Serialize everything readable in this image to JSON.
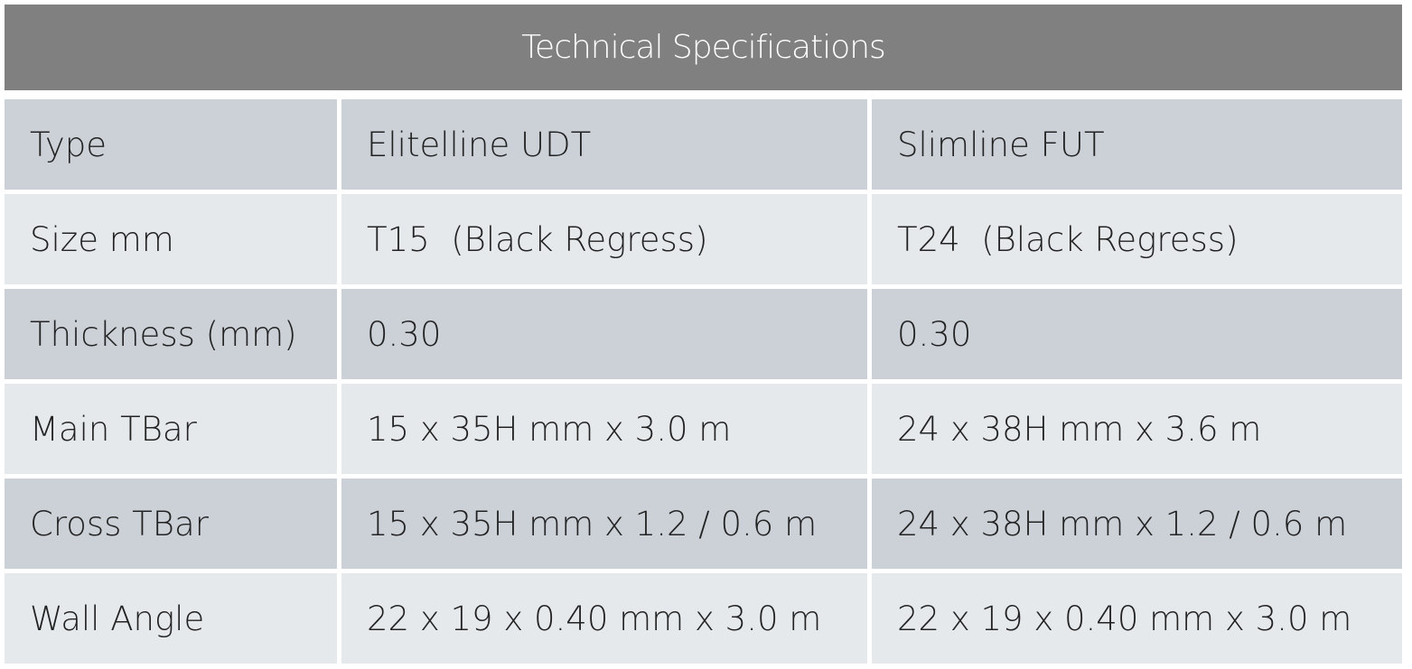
{
  "table": {
    "title": "Technical Specifications",
    "rows": [
      [
        "Type",
        "Elitelline UDT",
        "Slimline FUT"
      ],
      [
        "Size mm",
        "T15  (Black Regress)",
        "T24  (Black Regress)"
      ],
      [
        "Thickness (mm)",
        "0.30",
        "0.30"
      ],
      [
        "Main TBar",
        "15 x 35H mm x 3.0 m",
        "24 x 38H mm x 3.6 m"
      ],
      [
        "Cross TBar",
        "15 x 35H mm x 1.2 / 0.6 m",
        "24 x 38H mm x 1.2 / 0.6 m"
      ],
      [
        "Wall Angle",
        "22 x 19 x 0.40 mm x 3.0 m",
        "22 x 19 x 0.40 mm x 3.0 m"
      ]
    ]
  }
}
